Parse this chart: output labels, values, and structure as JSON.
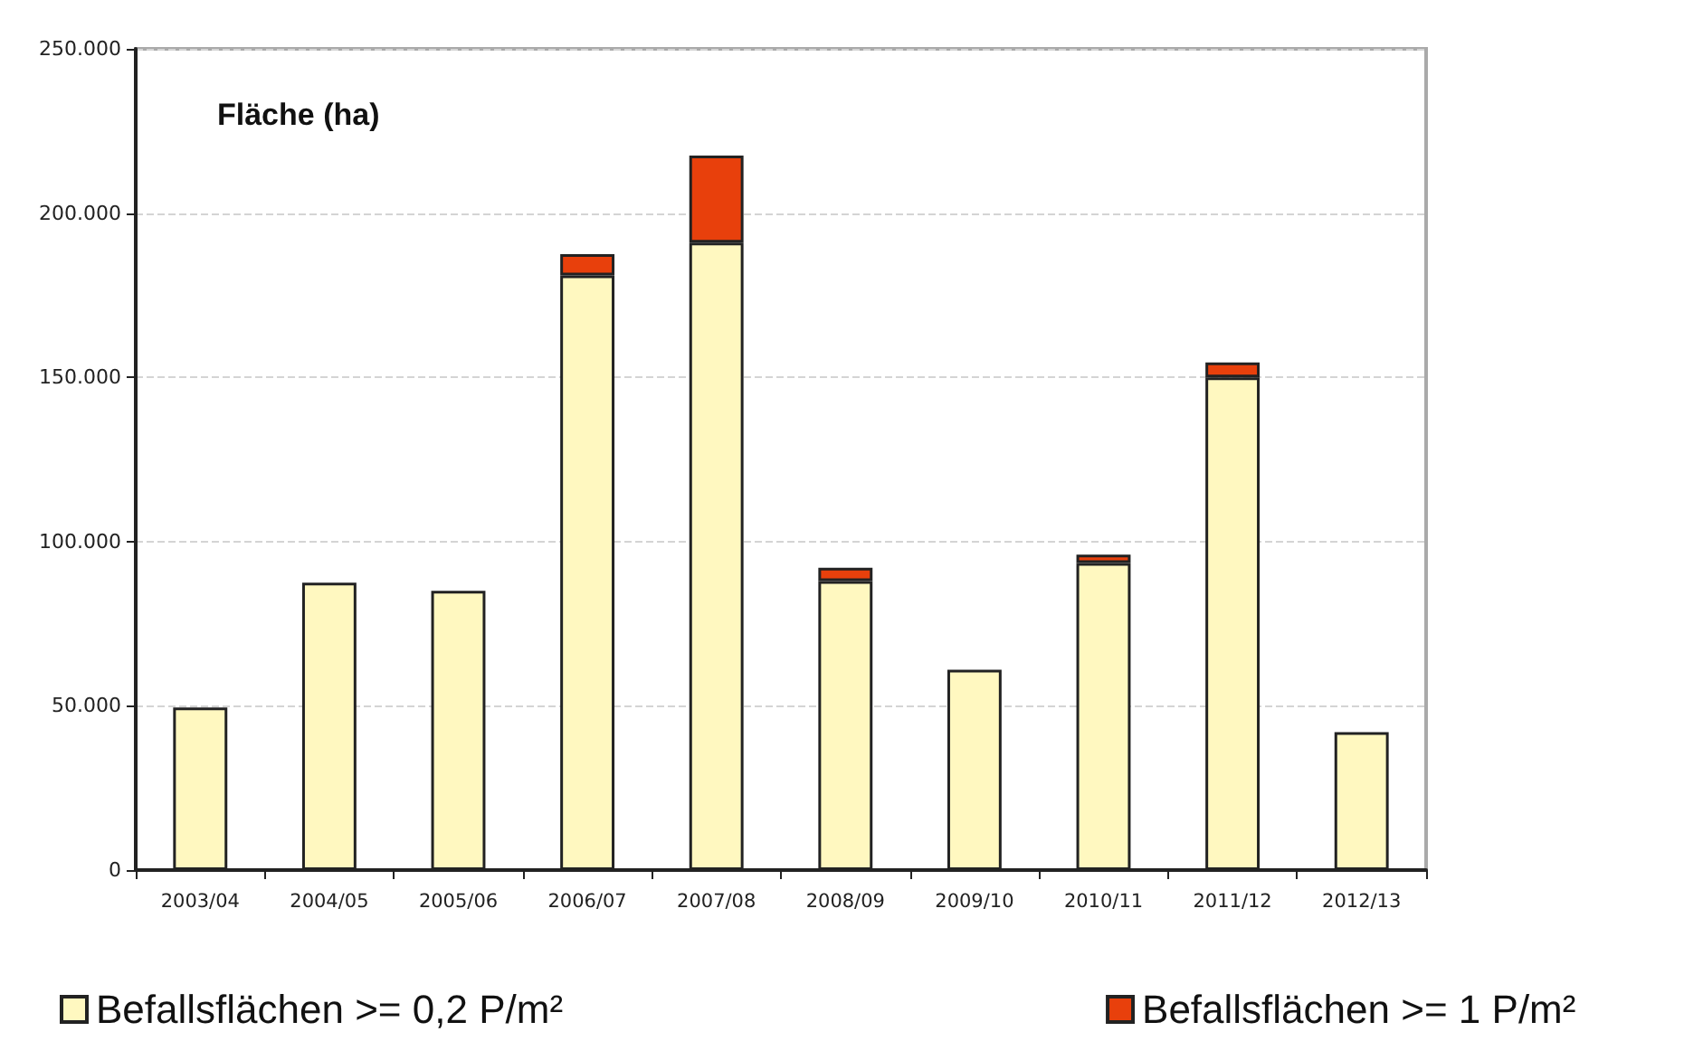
{
  "chart_data": {
    "type": "bar",
    "title": "Fläche (ha)",
    "stacked": true,
    "categories": [
      "2003/04",
      "2004/05",
      "2005/06",
      "2006/07",
      "2007/08",
      "2008/09",
      "2009/10",
      "2010/11",
      "2011/12",
      "2012/13"
    ],
    "series": [
      {
        "name": "Befallsflächen >= 0,2 P/m²",
        "color": "#fff8c0",
        "values": [
          49500,
          87500,
          85000,
          181000,
          191000,
          88000,
          61000,
          93500,
          150000,
          42000
        ]
      },
      {
        "name": "Befallsflächen >= 1 P/m²",
        "color": "#e8400c",
        "values": [
          null,
          null,
          null,
          6500,
          26500,
          4000,
          null,
          2500,
          4500,
          null
        ]
      }
    ],
    "ylim": [
      0,
      250000
    ],
    "yticks": [
      {
        "value": 0,
        "label": "0"
      },
      {
        "value": 50000,
        "label": "50.000"
      },
      {
        "value": 100000,
        "label": "100.000"
      },
      {
        "value": 150000,
        "label": "150.000"
      },
      {
        "value": 200000,
        "label": "200.000"
      },
      {
        "value": 250000,
        "label": "250.000"
      }
    ],
    "grid": "y",
    "legend": "bottom"
  }
}
